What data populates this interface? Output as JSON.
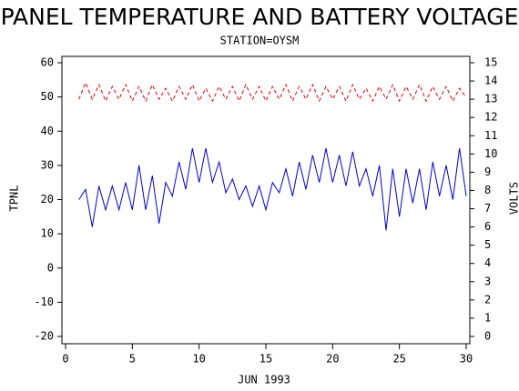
{
  "chart_data": {
    "type": "line",
    "title": "PANEL TEMPERATURE AND BATTERY VOLTAGE",
    "subtitle": "STATION=OYSM",
    "x_label": "JUN 1993",
    "y_label": "TPNL",
    "y2_label": "VOLTS",
    "x": [
      1,
      1.5,
      2,
      2.5,
      3,
      3.5,
      4,
      4.5,
      5,
      5.5,
      6,
      6.5,
      7,
      7.5,
      8,
      8.5,
      9,
      9.5,
      10,
      10.5,
      11,
      11.5,
      12,
      12.5,
      13,
      13.5,
      14,
      14.5,
      15,
      15.5,
      16,
      16.5,
      17,
      17.5,
      18,
      18.5,
      19,
      19.5,
      20,
      20.5,
      21,
      21.5,
      22,
      22.5,
      23,
      23.5,
      24,
      24.5,
      25,
      25.5,
      26,
      26.5,
      27,
      27.5,
      28,
      28.5,
      29,
      29.5,
      30
    ],
    "series": [
      {
        "color": "#0000cc",
        "line_style": "solid",
        "values": [
          20,
          23,
          12,
          24,
          17,
          24,
          17,
          25,
          17,
          30,
          17,
          27,
          13,
          25,
          21,
          31,
          23,
          35,
          25,
          35,
          25,
          31,
          22,
          26,
          20,
          24,
          18,
          24,
          17,
          25,
          22,
          29,
          21,
          31,
          23,
          33,
          25,
          35,
          25,
          33,
          24,
          34,
          24,
          29,
          21,
          30,
          11,
          29,
          15,
          29,
          19,
          29,
          17,
          31,
          21,
          30,
          20,
          35,
          21
        ]
      },
      {
        "color": "#dd0000",
        "line_style": "dashed",
        "axis": "y2",
        "values": [
          13.0,
          13.9,
          13.0,
          13.8,
          12.9,
          13.7,
          13.0,
          13.8,
          12.9,
          13.7,
          12.9,
          13.8,
          13.0,
          13.6,
          12.9,
          13.7,
          13.0,
          13.8,
          12.9,
          13.6,
          12.9,
          13.7,
          13.0,
          13.7,
          12.9,
          13.8,
          13.0,
          13.7,
          12.9,
          13.7,
          13.0,
          13.8,
          12.9,
          13.7,
          13.0,
          13.8,
          12.9,
          13.7,
          13.0,
          13.7,
          12.9,
          13.8,
          13.0,
          13.6,
          12.9,
          13.7,
          13.0,
          13.8,
          12.9,
          13.7,
          13.0,
          13.8,
          12.9,
          13.7,
          13.0,
          13.7,
          12.9,
          13.6,
          13.1
        ]
      }
    ],
    "xlim": [
      0,
      30
    ],
    "xticks": [
      0,
      5,
      10,
      15,
      20,
      25,
      30
    ],
    "ylim": [
      -20,
      60
    ],
    "yticks": [
      -20,
      -10,
      0,
      10,
      20,
      30,
      40,
      50,
      60
    ],
    "y2lim": [
      0,
      15
    ],
    "y2ticks": [
      0,
      1,
      2,
      3,
      4,
      5,
      6,
      7,
      8,
      9,
      10,
      11,
      12,
      13,
      14,
      15
    ]
  }
}
